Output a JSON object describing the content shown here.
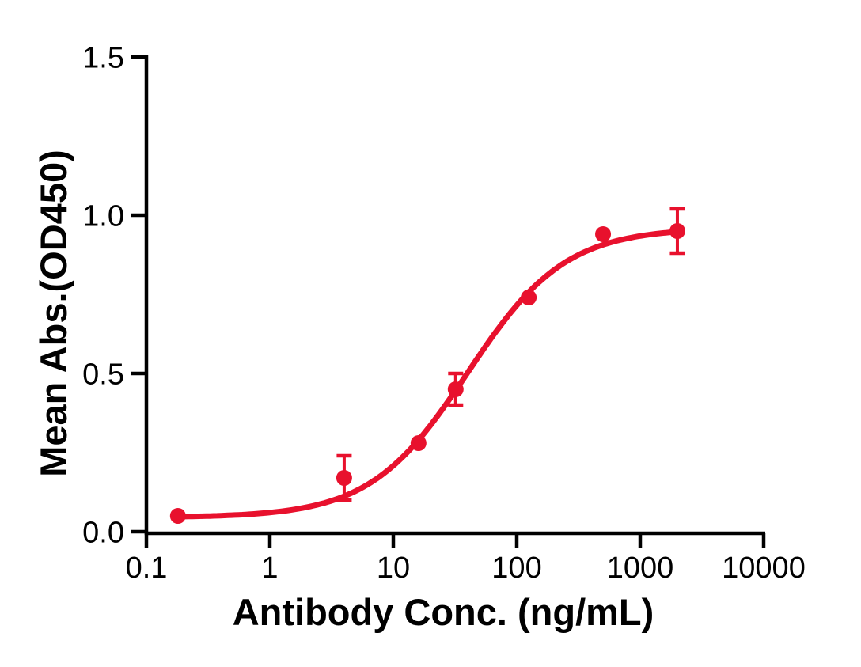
{
  "chart_data": {
    "type": "scatter",
    "title": "",
    "xlabel": "Antibody Conc. (ng/mL)",
    "ylabel": "Mean Abs.(OD450)",
    "x_scale": "log10",
    "xlim": [
      0.1,
      10000
    ],
    "ylim": [
      0.0,
      1.5
    ],
    "x_ticks": [
      "0.1",
      "1",
      "10",
      "100",
      "1000",
      "10000"
    ],
    "y_ticks": [
      "0.0",
      "0.5",
      "1.0",
      "1.5"
    ],
    "grid": false,
    "legend_position": "none",
    "colors": {
      "series": "#E8112D",
      "axis": "#000000",
      "background": "#FFFFFF"
    },
    "series": [
      {
        "marker": "circle",
        "color": "#E8112D",
        "points": [
          {
            "x": 0.18,
            "y": 0.05,
            "err": 0
          },
          {
            "x": 4,
            "y": 0.17,
            "err": 0.07
          },
          {
            "x": 16,
            "y": 0.28,
            "err": 0
          },
          {
            "x": 32,
            "y": 0.45,
            "err": 0.05
          },
          {
            "x": 125,
            "y": 0.74,
            "err": 0
          },
          {
            "x": 500,
            "y": 0.94,
            "err": 0
          },
          {
            "x": 2000,
            "y": 0.95,
            "err": 0.07
          }
        ],
        "fit_curve": {
          "model": "4PL",
          "bottom": 0.045,
          "top": 0.96,
          "ec50": 40,
          "hill": 1.1,
          "x_start": 0.18,
          "x_end": 2000
        }
      }
    ]
  }
}
